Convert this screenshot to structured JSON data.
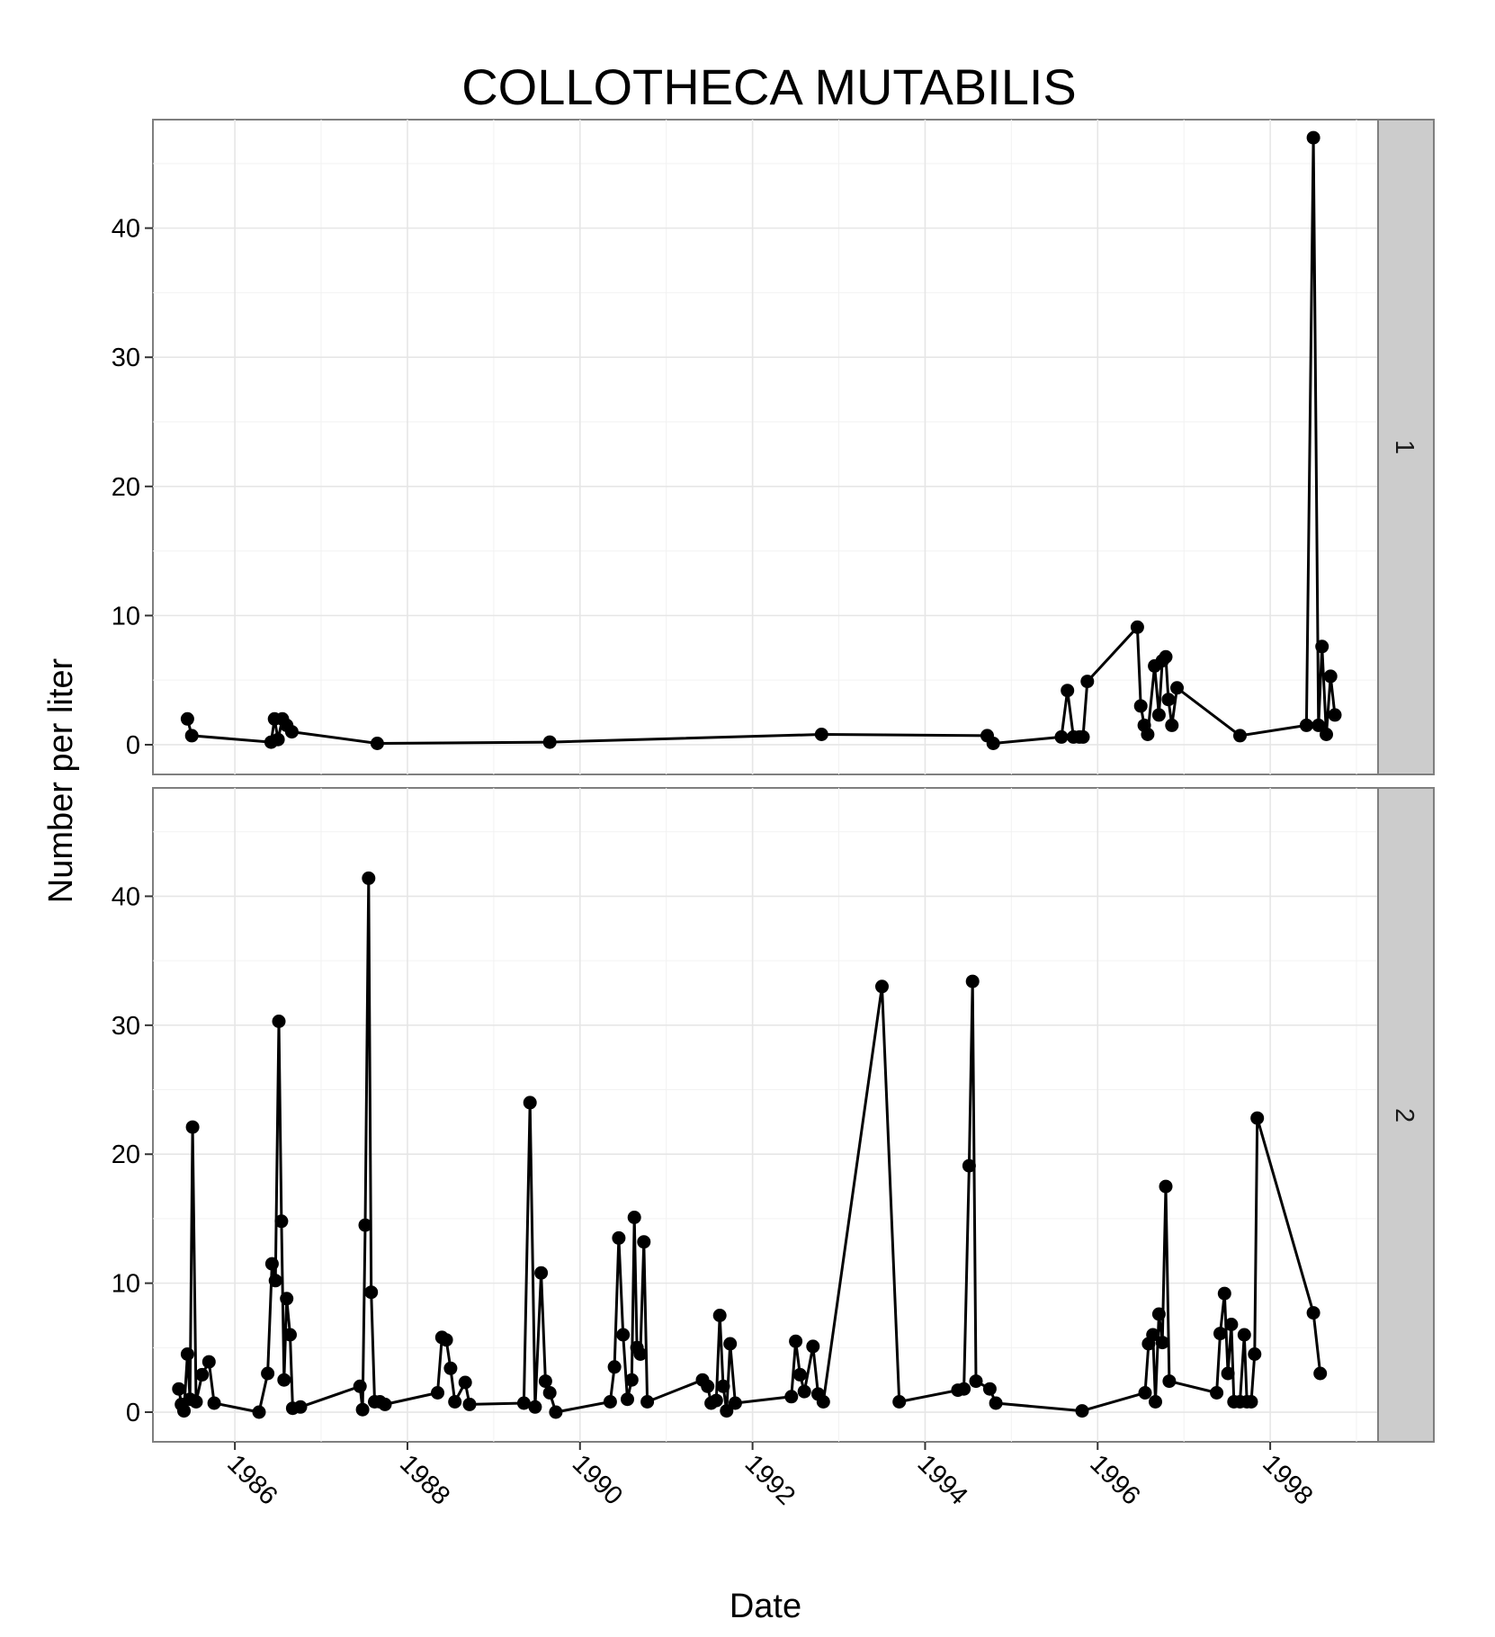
{
  "chart_data": {
    "type": "line",
    "title": "COLLOTHECA MUTABILIS",
    "xlabel": "Date",
    "ylabel": "Number per liter",
    "xlim": [
      1985.05,
      1999.25
    ],
    "ylim": [
      -2.3,
      48.4
    ],
    "x_ticks": [
      1986,
      1988,
      1990,
      1992,
      1994,
      1996,
      1998
    ],
    "x_tick_labels": [
      "1986",
      "1988",
      "1990",
      "1992",
      "1994",
      "1996",
      "1998"
    ],
    "y_ticks": [
      0,
      10,
      20,
      30,
      40
    ],
    "y_tick_labels": [
      "0",
      "10",
      "20",
      "30",
      "40"
    ],
    "grid": true,
    "facets": [
      {
        "label": "1",
        "points": [
          [
            1985.45,
            2.0
          ],
          [
            1985.5,
            0.7
          ],
          [
            1986.42,
            0.2
          ],
          [
            1986.46,
            2.0
          ],
          [
            1986.5,
            0.4
          ],
          [
            1986.55,
            2.0
          ],
          [
            1986.6,
            1.5
          ],
          [
            1986.66,
            1.0
          ],
          [
            1987.65,
            0.1
          ],
          [
            1989.65,
            0.2
          ],
          [
            1992.8,
            0.8
          ],
          [
            1994.72,
            0.7
          ],
          [
            1994.79,
            0.1
          ],
          [
            1995.58,
            0.6
          ],
          [
            1995.65,
            4.2
          ],
          [
            1995.72,
            0.6
          ],
          [
            1995.79,
            0.6
          ],
          [
            1995.83,
            0.6
          ],
          [
            1995.88,
            4.9
          ],
          [
            1996.46,
            9.1
          ],
          [
            1996.5,
            3.0
          ],
          [
            1996.54,
            1.5
          ],
          [
            1996.58,
            0.8
          ],
          [
            1996.66,
            6.1
          ],
          [
            1996.71,
            2.3
          ],
          [
            1996.75,
            6.5
          ],
          [
            1996.79,
            6.8
          ],
          [
            1996.82,
            3.5
          ],
          [
            1996.86,
            1.5
          ],
          [
            1996.92,
            4.4
          ],
          [
            1997.65,
            0.7
          ],
          [
            1998.42,
            1.5
          ],
          [
            1998.5,
            47.0
          ],
          [
            1998.56,
            1.5
          ],
          [
            1998.6,
            7.6
          ],
          [
            1998.65,
            0.8
          ],
          [
            1998.7,
            5.3
          ],
          [
            1998.75,
            2.3
          ]
        ]
      },
      {
        "label": "2",
        "points": [
          [
            1985.35,
            1.8
          ],
          [
            1985.38,
            0.6
          ],
          [
            1985.41,
            0.1
          ],
          [
            1985.45,
            4.5
          ],
          [
            1985.48,
            1.0
          ],
          [
            1985.51,
            22.1
          ],
          [
            1985.55,
            0.8
          ],
          [
            1985.62,
            2.9
          ],
          [
            1985.7,
            3.9
          ],
          [
            1985.76,
            0.7
          ],
          [
            1986.28,
            0.0
          ],
          [
            1986.38,
            3.0
          ],
          [
            1986.43,
            11.5
          ],
          [
            1986.47,
            10.2
          ],
          [
            1986.51,
            30.3
          ],
          [
            1986.54,
            14.8
          ],
          [
            1986.57,
            2.5
          ],
          [
            1986.6,
            8.8
          ],
          [
            1986.64,
            6.0
          ],
          [
            1986.67,
            0.3
          ],
          [
            1986.76,
            0.4
          ],
          [
            1987.45,
            2.0
          ],
          [
            1987.48,
            0.2
          ],
          [
            1987.51,
            14.5
          ],
          [
            1987.55,
            41.4
          ],
          [
            1987.58,
            9.3
          ],
          [
            1987.62,
            0.8
          ],
          [
            1987.68,
            0.8
          ],
          [
            1987.74,
            0.6
          ],
          [
            1988.35,
            1.5
          ],
          [
            1988.4,
            5.8
          ],
          [
            1988.45,
            5.6
          ],
          [
            1988.5,
            3.4
          ],
          [
            1988.55,
            0.8
          ],
          [
            1988.67,
            2.3
          ],
          [
            1988.72,
            0.6
          ],
          [
            1989.35,
            0.7
          ],
          [
            1989.42,
            24.0
          ],
          [
            1989.48,
            0.4
          ],
          [
            1989.55,
            10.8
          ],
          [
            1989.6,
            2.4
          ],
          [
            1989.65,
            1.5
          ],
          [
            1989.72,
            0.0
          ],
          [
            1990.35,
            0.8
          ],
          [
            1990.4,
            3.5
          ],
          [
            1990.45,
            13.5
          ],
          [
            1990.5,
            6.0
          ],
          [
            1990.55,
            1.0
          ],
          [
            1990.6,
            2.5
          ],
          [
            1990.63,
            15.1
          ],
          [
            1990.66,
            5.0
          ],
          [
            1990.7,
            4.5
          ],
          [
            1990.74,
            13.2
          ],
          [
            1990.78,
            0.8
          ],
          [
            1991.42,
            2.5
          ],
          [
            1991.48,
            2.0
          ],
          [
            1991.52,
            0.7
          ],
          [
            1991.58,
            0.9
          ],
          [
            1991.62,
            7.5
          ],
          [
            1991.66,
            2.0
          ],
          [
            1991.7,
            0.1
          ],
          [
            1991.74,
            5.3
          ],
          [
            1991.8,
            0.7
          ],
          [
            1992.45,
            1.2
          ],
          [
            1992.5,
            5.5
          ],
          [
            1992.55,
            2.9
          ],
          [
            1992.6,
            1.6
          ],
          [
            1992.7,
            5.1
          ],
          [
            1992.76,
            1.4
          ],
          [
            1992.82,
            0.8
          ],
          [
            1993.5,
            33.0
          ],
          [
            1993.7,
            0.8
          ],
          [
            1994.38,
            1.7
          ],
          [
            1994.45,
            1.8
          ],
          [
            1994.51,
            19.1
          ],
          [
            1994.55,
            33.4
          ],
          [
            1994.59,
            2.4
          ],
          [
            1994.75,
            1.8
          ],
          [
            1994.82,
            0.7
          ],
          [
            1995.82,
            0.1
          ],
          [
            1996.55,
            1.5
          ],
          [
            1996.59,
            5.3
          ],
          [
            1996.64,
            6.0
          ],
          [
            1996.67,
            0.8
          ],
          [
            1996.71,
            7.6
          ],
          [
            1996.75,
            5.4
          ],
          [
            1996.79,
            17.5
          ],
          [
            1996.83,
            2.4
          ],
          [
            1997.38,
            1.5
          ],
          [
            1997.42,
            6.1
          ],
          [
            1997.47,
            9.2
          ],
          [
            1997.51,
            3.0
          ],
          [
            1997.55,
            6.8
          ],
          [
            1997.58,
            0.8
          ],
          [
            1997.65,
            0.8
          ],
          [
            1997.7,
            6.0
          ],
          [
            1997.73,
            0.8
          ],
          [
            1997.78,
            0.8
          ],
          [
            1997.82,
            4.5
          ],
          [
            1997.85,
            22.8
          ],
          [
            1998.5,
            7.7
          ],
          [
            1998.58,
            3.0
          ]
        ]
      }
    ]
  }
}
